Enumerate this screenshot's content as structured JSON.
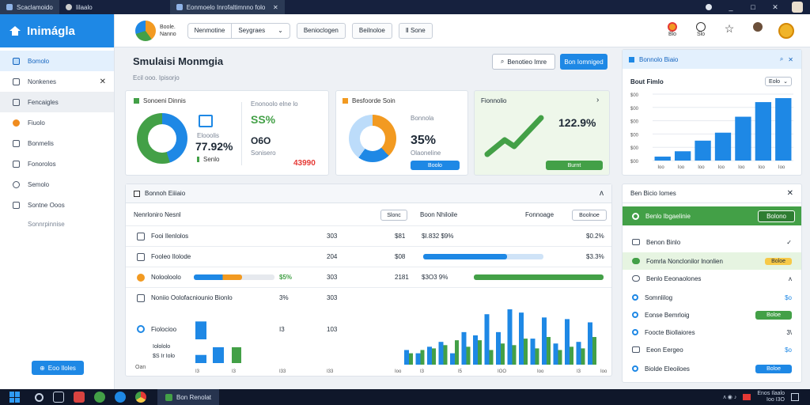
{
  "window": {
    "tabs": [
      {
        "label": "Scaclamoido"
      },
      {
        "label": "Iilaalo"
      },
      {
        "label": "Eonmoelo Inrofaltimnno folo"
      }
    ],
    "controls": [
      "_",
      "□",
      "✕"
    ]
  },
  "sidebar": {
    "brand": "Inimágla",
    "items": [
      {
        "label": "Bomolo",
        "icon": "dashboard-icon",
        "state": "active"
      },
      {
        "label": "Nonkenes",
        "icon": "list-icon",
        "state": "",
        "close": "✕"
      },
      {
        "label": "Fencaigles",
        "icon": "wrench-icon",
        "state": "hover"
      },
      {
        "label": "Fiuolo",
        "icon": "circle-icon",
        "state": ""
      },
      {
        "label": "Bonmelis",
        "icon": "document-icon",
        "state": ""
      },
      {
        "label": "Fonorolos",
        "icon": "briefcase-icon",
        "state": ""
      },
      {
        "label": "Semolo",
        "icon": "clock-icon",
        "state": ""
      },
      {
        "label": "Sontne Ooos",
        "icon": "grid-icon",
        "state": ""
      }
    ],
    "sub_item": "Sonnrpinnise",
    "bottom_button": "Eoo Iloles"
  },
  "topbar": {
    "logo_line1": "Boole.",
    "logo_line2": "Nanno",
    "select_left": "Nenmotine",
    "select_right": "Seygraes",
    "buttons": [
      "Benioclogen",
      "Beilnoloe",
      "Ⅱ Sone"
    ],
    "icon_labels": [
      "Blo",
      "Slo",
      "",
      ""
    ]
  },
  "main": {
    "title": "Smulaisi Monmgia",
    "subtitle": "Ecil ooo. Ipisorjo",
    "search_label": "Benotieo Imre",
    "primary_button": "Bon Iomniged"
  },
  "kpi1": {
    "title": "Sonoeni Dinnis",
    "center_label": "Elooolis",
    "value": "77.92%",
    "legend": "Senlo",
    "right_title": "Enonoolo elne lo",
    "right_value": "SS%",
    "right_sub": "O6O",
    "right_sub2": "Sonisero",
    "badge": "43990"
  },
  "kpi2": {
    "title": "Besfoorde Soin",
    "label1": "Bonnola",
    "value": "35%",
    "sub": "Olaoneline",
    "button": "Boolo"
  },
  "kpi3": {
    "title": "Fionnolio",
    "chevron": "›",
    "value": "122.9%",
    "button": "Burnt"
  },
  "right_chart": {
    "header": "Bonnolo Biaio",
    "title": "Bout Fimlo",
    "dropdown": "Eolo",
    "chart_data": {
      "type": "bar",
      "categories": [
        "Ioo",
        "Ioo",
        "Ioo",
        "Ioo",
        "Ioo",
        "Ioo",
        "Ioo"
      ],
      "values": [
        30,
        70,
        150,
        210,
        330,
        440,
        470
      ],
      "y_ticks": [
        "$00",
        "$00",
        "$00",
        "$00",
        "$00",
        "$00"
      ],
      "ylim": [
        0,
        500
      ]
    }
  },
  "table": {
    "header": "Bonnoh Eiiiaio",
    "col_left": "Nenrloniro Nesnl",
    "btn_left": "Slonc",
    "col_mid": "Boon Nhiloile",
    "col_right": "Fonnoage",
    "btn_right": "Boolnoe",
    "rows": [
      {
        "name": "Fooi Ilenlolos",
        "v1": "303",
        "v2": "$81",
        "v3": "$I.832 $9%",
        "v4": "$0.2%",
        "bar_a": null,
        "bar_b": null
      },
      {
        "name": "Fooleo Ilolode",
        "v1": "204",
        "v2": "$08",
        "v3": "",
        "v4": "$3.3%",
        "bar_a": null,
        "bar_b": 0.7
      },
      {
        "name": "Nolooloolo",
        "v1": "303",
        "v2": "2181",
        "v3": "$3O3 9%",
        "v4": "",
        "bar_a": 0.6,
        "bar_b": 1.0,
        "pct": "$5%"
      },
      {
        "name": "Noniio Oolofacniounio Bionlo",
        "v1": "303",
        "v2": "",
        "v3": "",
        "v4": "",
        "bar_a": null,
        "bar_b": null,
        "pct": "3%"
      },
      {
        "name": "Fiolocioo",
        "v1": "103",
        "v2": "",
        "v3": "",
        "v4": "",
        "bar_a": null,
        "bar_b": null,
        "pct": "I3"
      }
    ],
    "footer_left": "Oan",
    "footer_mini": [
      "Iolololo",
      "$S Ir Iolo"
    ],
    "ticks": [
      "I3",
      "I3",
      "I33",
      "I33",
      "Ioo",
      "I3",
      "I5",
      "IOO",
      "Ioo",
      "I3",
      "Ioo"
    ],
    "chart_data": {
      "type": "bar",
      "series": [
        {
          "values": [
            18,
            14,
            22,
            28,
            14,
            40,
            36,
            62,
            40,
            68,
            64,
            32,
            58,
            26,
            56,
            28,
            52
          ]
        },
        {
          "values": [
            14,
            18,
            20,
            24,
            30,
            22,
            30,
            18,
            26,
            24,
            32,
            20,
            34,
            18,
            22,
            20,
            34
          ]
        }
      ],
      "mini_values": [
        22,
        10,
        12
      ],
      "ylim": [
        0,
        70
      ]
    }
  },
  "right_panel": {
    "header": "Ben Bicio Iomes",
    "close": "✕",
    "highlight_label": "Benlo Ibgaelinie",
    "highlight_button": "Bolono",
    "rows": [
      {
        "label": "Benon Binlo",
        "end": "✓",
        "style": "plain"
      },
      {
        "label": "Fomrla Nonclonilor lnonlien",
        "end": "Boloe",
        "style": "green-hl"
      },
      {
        "label": "Benlo Eeonaolones",
        "end": "ʌ",
        "style": "plain"
      },
      {
        "label": "Somnlilog",
        "end": "$o",
        "style": "circle"
      },
      {
        "label": "Eonse Bemrloig",
        "end": "Boloe",
        "style": "circle-green"
      },
      {
        "label": "Foocte Biollaiores",
        "end": "3\\",
        "style": "circle"
      },
      {
        "label": "Eeon Eergeo",
        "end": "$o",
        "style": "plain"
      },
      {
        "label": "Biolde Eleoiloes",
        "end": "Boloe",
        "style": "circle-blue"
      }
    ]
  },
  "taskbar": {
    "app_label": "Bon Renolat",
    "tray": "ʌ  ◉  ♪",
    "clock_line1": "Enos Ilaalo",
    "clock_line2": "Ioo I3O"
  },
  "colors": {
    "accent_blue": "#1e88e5",
    "green": "#43a047",
    "orange": "#f29a21",
    "red": "#e53935"
  }
}
